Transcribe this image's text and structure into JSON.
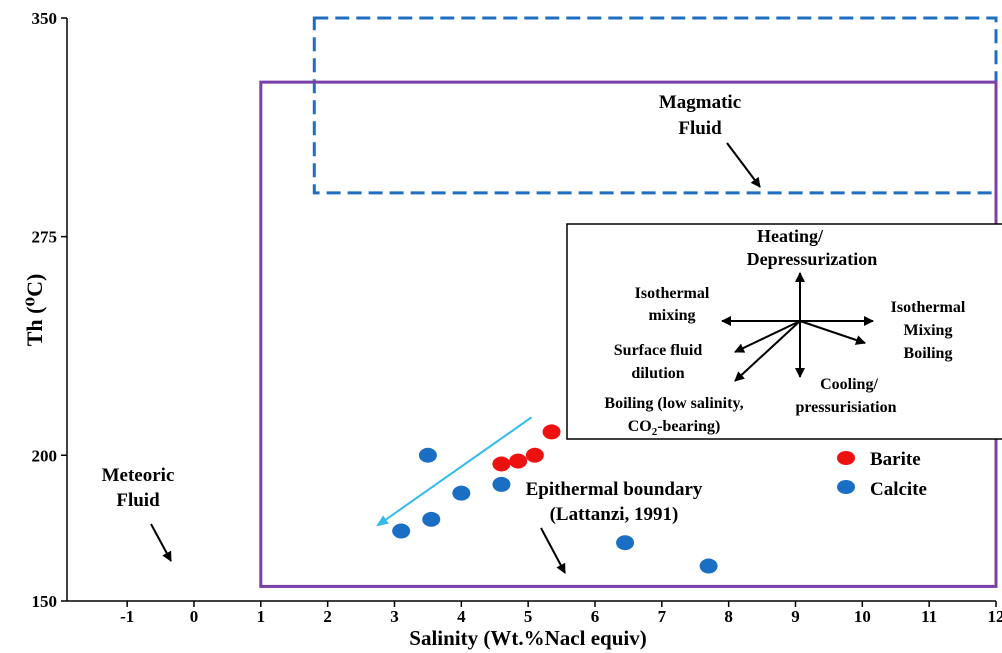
{
  "chart_data": {
    "type": "scatter",
    "xlabel": "Salinity (Wt.%Nacl equiv)",
    "ylabel": "Th",
    "ylabel_unit": "(⁰C)",
    "xlim": [
      -1.9,
      12
    ],
    "ylim": [
      150,
      350
    ],
    "xticks": [
      -1,
      0,
      1,
      2,
      3,
      4,
      5,
      6,
      7,
      8,
      9,
      10,
      11,
      12
    ],
    "yticks": [
      150,
      200,
      275,
      350
    ],
    "legend_position": "right-middle",
    "series": [
      {
        "name": "Barite",
        "color": "#ee1111",
        "points": [
          [
            4.6,
            197
          ],
          [
            4.85,
            198
          ],
          [
            5.1,
            200
          ],
          [
            5.35,
            208
          ]
        ]
      },
      {
        "name": "Calcite",
        "color": "#1a6fc4",
        "points": [
          [
            3.5,
            200
          ],
          [
            4.6,
            190
          ],
          [
            4.0,
            187
          ],
          [
            3.55,
            178
          ],
          [
            3.1,
            174
          ],
          [
            6.45,
            170
          ],
          [
            7.7,
            162
          ]
        ]
      }
    ],
    "regions": [
      {
        "name": "Magmatic Fluid",
        "style": "dashed",
        "color": "#1f6fc0",
        "x": [
          1.8,
          12
        ],
        "y": [
          290,
          350
        ]
      },
      {
        "name": "Epithermal boundary",
        "style": "solid",
        "color": "#7a3fa8",
        "x": [
          1.0,
          12
        ],
        "y": [
          155,
          328
        ]
      }
    ],
    "trend_arrow": {
      "color": "#33bbee",
      "from": [
        5.05,
        213
      ],
      "to": [
        2.75,
        176
      ]
    },
    "annotations": {
      "magmatic": [
        "Magmatic",
        "Fluid"
      ],
      "meteoric": [
        "Meteoric",
        "Fluid"
      ],
      "epithermal": [
        "Epithermal boundary",
        "(Lattanzi, 1991)"
      ]
    },
    "inset": {
      "heating": [
        "Heating/",
        "Depressurization"
      ],
      "iso_mixing": [
        "Isothermal",
        "mixing"
      ],
      "iso_boiling": [
        "Isothermal",
        "Mixing",
        "Boiling"
      ],
      "surface": [
        "Surface fluid",
        "dilution"
      ],
      "cooling": [
        "Cooling/",
        "pressurisiation"
      ],
      "boiling_low": [
        "Boiling (low salinity,"
      ],
      "co2_main": "CO",
      "co2_sub": "2",
      "co2_tail": "-bearing)"
    }
  }
}
